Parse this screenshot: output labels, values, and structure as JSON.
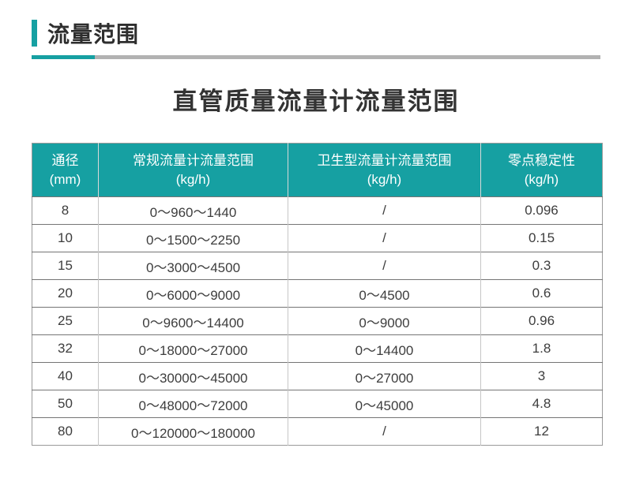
{
  "header": {
    "section_title": "流量范围",
    "main_title": "直管质量流量计流量范围"
  },
  "colors": {
    "accent": "#16A0A2",
    "divider_gray": "#B2B2B2",
    "header_bg": "#16A0A2",
    "header_text": "#FFFFFF",
    "body_text": "#3D3D3D"
  },
  "table": {
    "columns": [
      {
        "title": "通径",
        "unit": "(mm)"
      },
      {
        "title": "常规流量计流量范围",
        "unit": "(kg/h)"
      },
      {
        "title": "卫生型流量计流量范围",
        "unit": "(kg/h)"
      },
      {
        "title": "零点稳定性",
        "unit": "(kg/h)"
      }
    ],
    "rows": [
      [
        "8",
        "0～960～1440",
        "/",
        "0.096"
      ],
      [
        "10",
        "0～1500～2250",
        "/",
        "0.15"
      ],
      [
        "15",
        "0～3000～4500",
        "/",
        "0.3"
      ],
      [
        "20",
        "0～6000～9000",
        "0～4500",
        "0.6"
      ],
      [
        "25",
        "0～9600～14400",
        "0～9000",
        "0.96"
      ],
      [
        "32",
        "0～18000～27000",
        "0～14400",
        "1.8"
      ],
      [
        "40",
        "0～30000～45000",
        "0～27000",
        "3"
      ],
      [
        "50",
        "0～48000～72000",
        "0～45000",
        "4.8"
      ],
      [
        "80",
        "0～120000～180000",
        "/",
        "12"
      ]
    ]
  }
}
